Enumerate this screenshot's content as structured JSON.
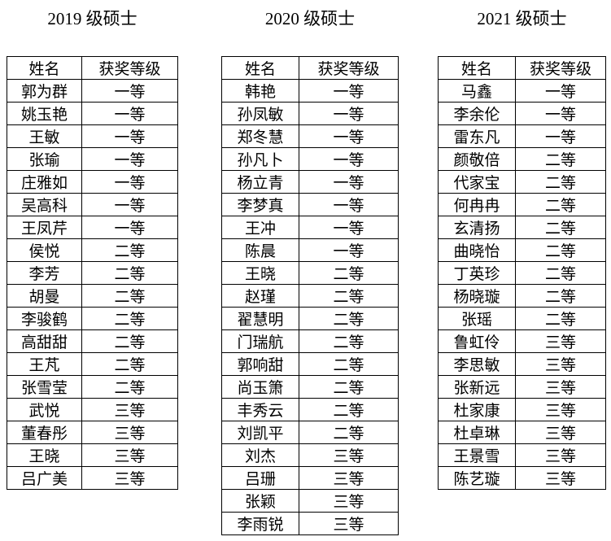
{
  "page": {
    "background": "#ffffff",
    "text_color": "#000000",
    "border_color": "#000000"
  },
  "tables": [
    {
      "title": "2019 级硕士",
      "headers": [
        "姓名",
        "获奖等级"
      ],
      "rows": [
        [
          "郭为群",
          "一等"
        ],
        [
          "姚玉艳",
          "一等"
        ],
        [
          "王敏",
          "一等"
        ],
        [
          "张瑜",
          "一等"
        ],
        [
          "庄雅如",
          "一等"
        ],
        [
          "吴高科",
          "一等"
        ],
        [
          "王凤芹",
          "一等"
        ],
        [
          "侯悦",
          "二等"
        ],
        [
          "李芳",
          "二等"
        ],
        [
          "胡曼",
          "二等"
        ],
        [
          "李骏鹤",
          "二等"
        ],
        [
          "高甜甜",
          "二等"
        ],
        [
          "王芃",
          "二等"
        ],
        [
          "张雪莹",
          "二等"
        ],
        [
          "武悦",
          "三等"
        ],
        [
          "董春彤",
          "三等"
        ],
        [
          "王晓",
          "三等"
        ],
        [
          "吕广美",
          "三等"
        ]
      ]
    },
    {
      "title": "2020 级硕士",
      "headers": [
        "姓名",
        "获奖等级"
      ],
      "rows": [
        [
          "韩艳",
          "一等"
        ],
        [
          "孙凤敏",
          "一等"
        ],
        [
          "郑冬慧",
          "一等"
        ],
        [
          "孙凡卜",
          "一等"
        ],
        [
          "杨立青",
          "一等"
        ],
        [
          "李梦真",
          "一等"
        ],
        [
          "王冲",
          "一等"
        ],
        [
          "陈晨",
          "一等"
        ],
        [
          "王晓",
          "二等"
        ],
        [
          "赵瑾",
          "二等"
        ],
        [
          "翟慧明",
          "二等"
        ],
        [
          "门瑞航",
          "二等"
        ],
        [
          "郭响甜",
          "二等"
        ],
        [
          "尚玉箫",
          "二等"
        ],
        [
          "丰秀云",
          "二等"
        ],
        [
          "刘凯平",
          "二等"
        ],
        [
          "刘杰",
          "三等"
        ],
        [
          "吕珊",
          "三等"
        ],
        [
          "张颖",
          "三等"
        ],
        [
          "李雨锐",
          "三等"
        ]
      ]
    },
    {
      "title": "2021 级硕士",
      "headers": [
        "姓名",
        "获奖等级"
      ],
      "rows": [
        [
          "马鑫",
          "一等"
        ],
        [
          "李余伦",
          "一等"
        ],
        [
          "雷东凡",
          "一等"
        ],
        [
          "颜敬倍",
          "二等"
        ],
        [
          "代家宝",
          "二等"
        ],
        [
          "何冉冉",
          "二等"
        ],
        [
          "玄清扬",
          "二等"
        ],
        [
          "曲晓怡",
          "二等"
        ],
        [
          "丁英珍",
          "二等"
        ],
        [
          "杨晓璇",
          "二等"
        ],
        [
          "张瑶",
          "二等"
        ],
        [
          "鲁虹伶",
          "三等"
        ],
        [
          "李思敏",
          "三等"
        ],
        [
          "张新远",
          "三等"
        ],
        [
          "杜家康",
          "三等"
        ],
        [
          "杜卓琳",
          "三等"
        ],
        [
          "王景雪",
          "三等"
        ],
        [
          "陈艺璇",
          "三等"
        ]
      ]
    }
  ]
}
